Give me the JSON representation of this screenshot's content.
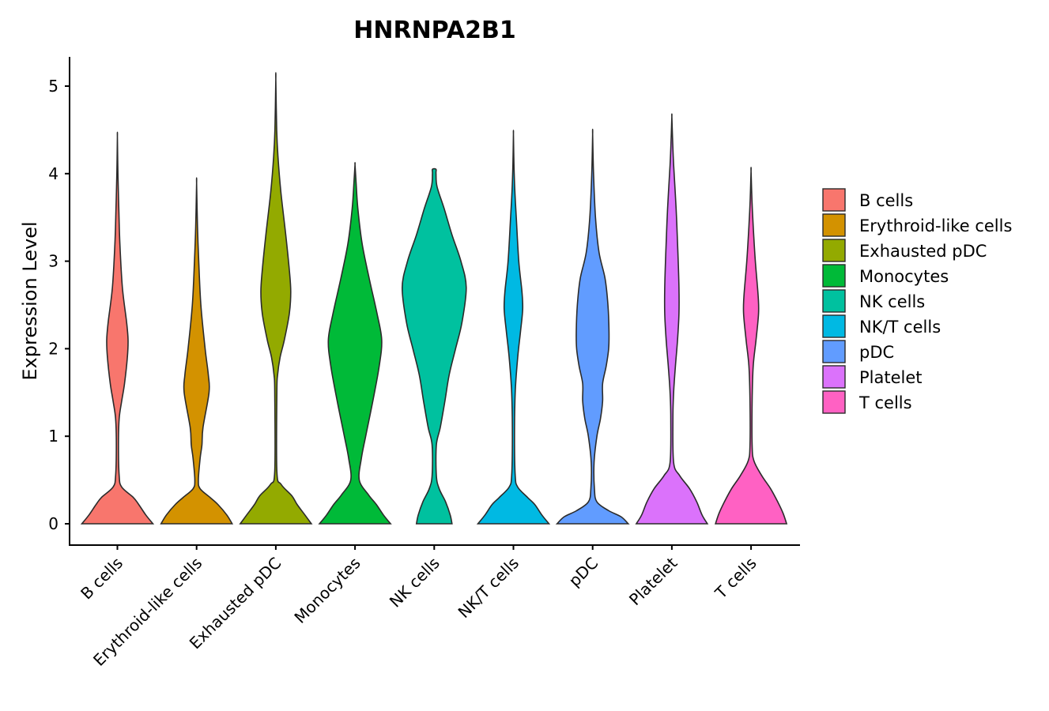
{
  "chart_data": {
    "type": "violin",
    "title": "HNRNPA2B1",
    "xlabel": "",
    "ylabel": "Expression Level",
    "ylim": [
      -0.25,
      5.35
    ],
    "yticks": [
      0,
      1,
      2,
      3,
      4,
      5
    ],
    "categories": [
      "B cells",
      "Erythroid-like cells",
      "Exhausted pDC",
      "Monocytes",
      "NK cells",
      "NK/T cells",
      "pDC",
      "Platelet",
      "T cells"
    ],
    "legend_position": "right",
    "grid": false,
    "series": [
      {
        "name": "B cells",
        "color": "#F8766D",
        "max": 4.42,
        "profile": [
          [
            0,
            1.0
          ],
          [
            0.1,
            0.8
          ],
          [
            0.22,
            0.6
          ],
          [
            0.3,
            0.45
          ],
          [
            0.42,
            0.12
          ],
          [
            0.55,
            0.05
          ],
          [
            0.9,
            0.03
          ],
          [
            1.2,
            0.05
          ],
          [
            1.4,
            0.12
          ],
          [
            1.6,
            0.2
          ],
          [
            1.9,
            0.28
          ],
          [
            2.1,
            0.3
          ],
          [
            2.3,
            0.26
          ],
          [
            2.7,
            0.14
          ],
          [
            3.2,
            0.07
          ],
          [
            3.6,
            0.04
          ],
          [
            4.0,
            0.015
          ],
          [
            4.42,
            0
          ]
        ]
      },
      {
        "name": "Erythroid-like cells",
        "color": "#D39200",
        "max": 3.89,
        "profile": [
          [
            0,
            1.0
          ],
          [
            0.1,
            0.85
          ],
          [
            0.22,
            0.6
          ],
          [
            0.3,
            0.38
          ],
          [
            0.4,
            0.1
          ],
          [
            0.5,
            0.05
          ],
          [
            0.75,
            0.1
          ],
          [
            0.9,
            0.15
          ],
          [
            1.1,
            0.18
          ],
          [
            1.5,
            0.35
          ],
          [
            1.7,
            0.33
          ],
          [
            2.0,
            0.24
          ],
          [
            2.5,
            0.12
          ],
          [
            3.0,
            0.06
          ],
          [
            3.4,
            0.025
          ],
          [
            3.89,
            0
          ]
        ]
      },
      {
        "name": "Exhausted pDC",
        "color": "#93AA00",
        "max": 5.08,
        "profile": [
          [
            0,
            1.0
          ],
          [
            0.1,
            0.82
          ],
          [
            0.22,
            0.6
          ],
          [
            0.32,
            0.45
          ],
          [
            0.45,
            0.15
          ],
          [
            0.6,
            0.03
          ],
          [
            1.5,
            0.03
          ],
          [
            1.7,
            0.05
          ],
          [
            1.9,
            0.12
          ],
          [
            2.1,
            0.24
          ],
          [
            2.4,
            0.38
          ],
          [
            2.65,
            0.42
          ],
          [
            2.9,
            0.38
          ],
          [
            3.3,
            0.28
          ],
          [
            3.8,
            0.14
          ],
          [
            4.2,
            0.06
          ],
          [
            4.5,
            0.025
          ],
          [
            5.08,
            0
          ]
        ]
      },
      {
        "name": "Monocytes",
        "color": "#00BA38",
        "max": 4.1,
        "profile": [
          [
            0,
            1.0
          ],
          [
            0.1,
            0.8
          ],
          [
            0.22,
            0.6
          ],
          [
            0.33,
            0.38
          ],
          [
            0.5,
            0.12
          ],
          [
            0.75,
            0.18
          ],
          [
            1.0,
            0.3
          ],
          [
            1.4,
            0.5
          ],
          [
            1.8,
            0.68
          ],
          [
            2.1,
            0.75
          ],
          [
            2.4,
            0.62
          ],
          [
            2.8,
            0.4
          ],
          [
            3.2,
            0.2
          ],
          [
            3.6,
            0.08
          ],
          [
            3.9,
            0.03
          ],
          [
            4.1,
            0
          ]
        ]
      },
      {
        "name": "NK cells",
        "color": "#00C19F",
        "max": 4.05,
        "profile": [
          [
            0,
            0.5
          ],
          [
            0.1,
            0.45
          ],
          [
            0.25,
            0.32
          ],
          [
            0.4,
            0.14
          ],
          [
            0.55,
            0.06
          ],
          [
            0.9,
            0.06
          ],
          [
            1.1,
            0.17
          ],
          [
            1.4,
            0.3
          ],
          [
            1.7,
            0.42
          ],
          [
            2.0,
            0.6
          ],
          [
            2.3,
            0.78
          ],
          [
            2.7,
            0.9
          ],
          [
            3.0,
            0.75
          ],
          [
            3.3,
            0.5
          ],
          [
            3.6,
            0.28
          ],
          [
            3.85,
            0.08
          ],
          [
            4.0,
            0.05
          ],
          [
            4.05,
            0.05
          ]
        ]
      },
      {
        "name": "NK/T cells",
        "color": "#00B9E3",
        "max": 4.45,
        "profile": [
          [
            0,
            1.0
          ],
          [
            0.1,
            0.8
          ],
          [
            0.22,
            0.6
          ],
          [
            0.3,
            0.4
          ],
          [
            0.42,
            0.12
          ],
          [
            0.55,
            0.05
          ],
          [
            1.0,
            0.03
          ],
          [
            1.5,
            0.05
          ],
          [
            1.9,
            0.12
          ],
          [
            2.2,
            0.2
          ],
          [
            2.45,
            0.26
          ],
          [
            2.65,
            0.24
          ],
          [
            3.0,
            0.15
          ],
          [
            3.5,
            0.08
          ],
          [
            3.8,
            0.04
          ],
          [
            4.1,
            0.015
          ],
          [
            4.45,
            0
          ]
        ]
      },
      {
        "name": "pDC",
        "color": "#619CFF",
        "max": 4.45,
        "profile": [
          [
            0,
            1.0
          ],
          [
            0.08,
            0.8
          ],
          [
            0.15,
            0.45
          ],
          [
            0.25,
            0.12
          ],
          [
            0.4,
            0.05
          ],
          [
            0.7,
            0.04
          ],
          [
            1.0,
            0.12
          ],
          [
            1.2,
            0.22
          ],
          [
            1.4,
            0.28
          ],
          [
            1.6,
            0.28
          ],
          [
            1.8,
            0.38
          ],
          [
            2.0,
            0.45
          ],
          [
            2.2,
            0.46
          ],
          [
            2.5,
            0.43
          ],
          [
            2.8,
            0.35
          ],
          [
            3.1,
            0.18
          ],
          [
            3.5,
            0.08
          ],
          [
            4.0,
            0.025
          ],
          [
            4.45,
            0
          ]
        ]
      },
      {
        "name": "Platelet",
        "color": "#DB72FB",
        "max": 4.65,
        "profile": [
          [
            0,
            1.0
          ],
          [
            0.1,
            0.85
          ],
          [
            0.25,
            0.7
          ],
          [
            0.4,
            0.5
          ],
          [
            0.55,
            0.22
          ],
          [
            0.7,
            0.05
          ],
          [
            1.2,
            0.03
          ],
          [
            1.5,
            0.05
          ],
          [
            1.8,
            0.1
          ],
          [
            2.1,
            0.16
          ],
          [
            2.4,
            0.2
          ],
          [
            2.7,
            0.2
          ],
          [
            3.1,
            0.17
          ],
          [
            3.6,
            0.12
          ],
          [
            4.1,
            0.05
          ],
          [
            4.4,
            0.02
          ],
          [
            4.65,
            0
          ]
        ]
      },
      {
        "name": "T cells",
        "color": "#FF61C3",
        "max": 4.03,
        "profile": [
          [
            0,
            1.0
          ],
          [
            0.12,
            0.9
          ],
          [
            0.25,
            0.75
          ],
          [
            0.4,
            0.55
          ],
          [
            0.55,
            0.3
          ],
          [
            0.72,
            0.08
          ],
          [
            0.9,
            0.03
          ],
          [
            1.4,
            0.03
          ],
          [
            1.8,
            0.06
          ],
          [
            2.1,
            0.14
          ],
          [
            2.4,
            0.21
          ],
          [
            2.6,
            0.2
          ],
          [
            3.0,
            0.12
          ],
          [
            3.4,
            0.06
          ],
          [
            3.7,
            0.025
          ],
          [
            4.03,
            0
          ]
        ]
      }
    ]
  }
}
